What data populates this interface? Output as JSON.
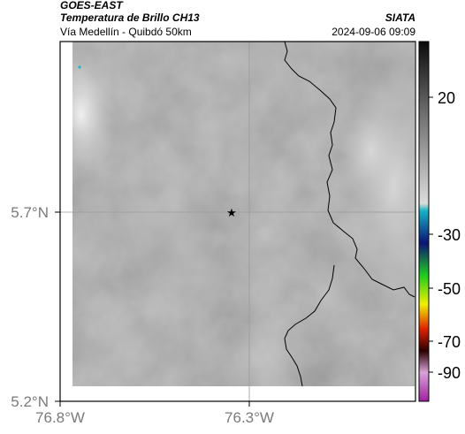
{
  "header": {
    "source": "GOES-EAST",
    "product": "Temperatura de Brillo CH13",
    "region": "Vía Medellín - Quibdó 50km",
    "organization": "SIATA",
    "timestamp": "2024-09-06 09:09"
  },
  "axes": {
    "lat_ticks": [
      "5.7°N",
      "5.2°N"
    ],
    "lon_ticks": [
      "76.8°W",
      "76.3°W"
    ]
  },
  "colorbar": {
    "ticks": [
      "20",
      "-30",
      "-50",
      "-70",
      "-90"
    ],
    "colors": [
      "#0b0b0b",
      "#6e6e6e",
      "#dcdcdc",
      "#17b4c8",
      "#0a1478",
      "#1ecc1e",
      "#f0f000",
      "#e02000",
      "#2a0000",
      "#d9a2d9",
      "#a020a0"
    ]
  },
  "map": {
    "marker": "star",
    "background_color": "#808080",
    "grid_color": "#9a9a9a",
    "boundary_color": "#000000"
  }
}
